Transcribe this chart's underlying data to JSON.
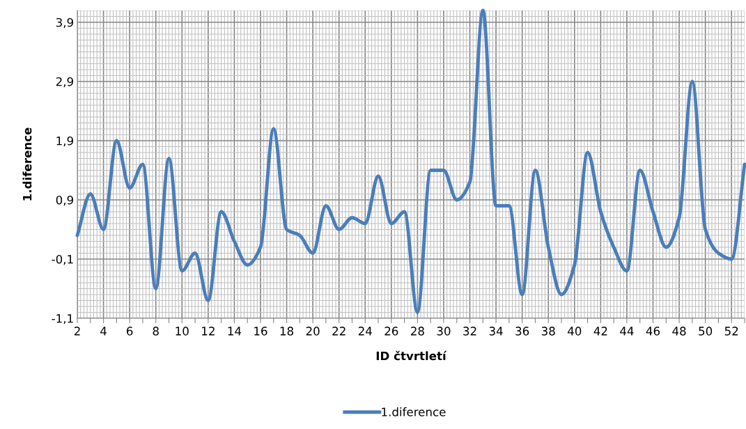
{
  "chart_data": {
    "type": "line",
    "xlabel": "ID čtvrtletí",
    "ylabel": "1.diference",
    "categories": [
      "2",
      null,
      "4",
      null,
      "6",
      null,
      "8",
      null,
      "10",
      null,
      "12",
      null,
      "14",
      null,
      "16",
      null,
      "18",
      null,
      "20",
      null,
      "22",
      null,
      "24",
      null,
      "26",
      null,
      "28",
      null,
      "30",
      null,
      "32",
      null,
      "34",
      null,
      "36",
      null,
      "38",
      null,
      "40",
      null,
      "42",
      null,
      "44",
      null,
      "46",
      null,
      "48",
      null,
      "50",
      null,
      "52",
      null
    ],
    "series": [
      {
        "name": "1.diference",
        "color": "#4a7ebb",
        "values": [
          0.3,
          1.0,
          0.4,
          1.9,
          1.1,
          1.5,
          -0.6,
          1.6,
          -0.3,
          0.0,
          -0.8,
          0.7,
          0.2,
          -0.2,
          0.1,
          2.1,
          0.4,
          0.3,
          0.0,
          0.8,
          0.4,
          0.6,
          0.5,
          1.3,
          0.5,
          0.7,
          -1.0,
          1.4,
          1.4,
          0.9,
          1.2,
          4.1,
          0.8,
          0.8,
          -0.7,
          1.4,
          0.1,
          -0.7,
          -0.2,
          1.7,
          0.7,
          0.1,
          -0.3,
          1.4,
          0.7,
          0.1,
          0.6,
          2.9,
          0.4,
          0.0,
          -0.1,
          1.5
        ]
      }
    ],
    "ylim": [
      -1.1,
      4.1
    ],
    "yticks": [
      {
        "value": -1.1,
        "label": "-1,1"
      },
      {
        "value": -0.1,
        "label": "-0,1"
      },
      {
        "value": 0.9,
        "label": "0,9"
      },
      {
        "value": 1.9,
        "label": "1,9"
      },
      {
        "value": 2.9,
        "label": "2,9"
      },
      {
        "value": 3.9,
        "label": "3,9"
      }
    ],
    "grid": true,
    "legend": "bottom",
    "marker": "none",
    "line_style": "solid"
  }
}
